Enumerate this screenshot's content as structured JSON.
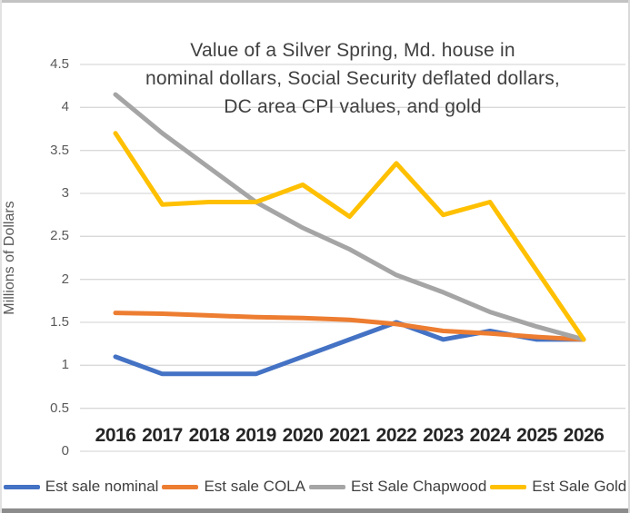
{
  "frame": {
    "background": "#ffffff",
    "border_top": "#c3c3c3",
    "border_bottom": "#8c8c8c",
    "gridline_color": "#d9d9d9"
  },
  "chart_data": {
    "type": "line",
    "title_lines": [
      "Value of a Silver Spring, Md. house in",
      "nominal dollars, Social Security deflated dollars,",
      "DC area CPI values, and gold"
    ],
    "ylabel": "Millions of Dollars",
    "xlabel": "",
    "categories": [
      "2016",
      "2017",
      "2018",
      "2019",
      "2020",
      "2021",
      "2022",
      "2023",
      "2024",
      "2025",
      "2026"
    ],
    "yticks": [
      "0",
      "0.5",
      "1",
      "1.5",
      "2",
      "2.5",
      "3",
      "3.5",
      "4",
      "4.5"
    ],
    "ylim": [
      0,
      4.5
    ],
    "grid": true,
    "legend_position": "bottom",
    "series": [
      {
        "name": "Est sale nominal",
        "color": "#4472C4",
        "values": [
          1.1,
          0.9,
          0.9,
          0.9,
          1.1,
          1.3,
          1.5,
          1.3,
          1.4,
          1.3,
          1.3
        ]
      },
      {
        "name": "Est sale COLA",
        "color": "#ED7D31",
        "values": [
          1.61,
          1.6,
          1.58,
          1.56,
          1.55,
          1.53,
          1.48,
          1.4,
          1.37,
          1.33,
          1.3
        ]
      },
      {
        "name": "Est Sale Chapwood",
        "color": "#A5A5A5",
        "values": [
          4.15,
          3.7,
          3.3,
          2.9,
          2.6,
          2.35,
          2.05,
          1.85,
          1.62,
          1.45,
          1.3
        ]
      },
      {
        "name": "Est Sale Gold",
        "color": "#FFC000",
        "values": [
          3.7,
          2.87,
          2.9,
          2.9,
          3.1,
          2.73,
          3.35,
          2.75,
          2.9,
          2.1,
          1.3
        ]
      }
    ]
  }
}
